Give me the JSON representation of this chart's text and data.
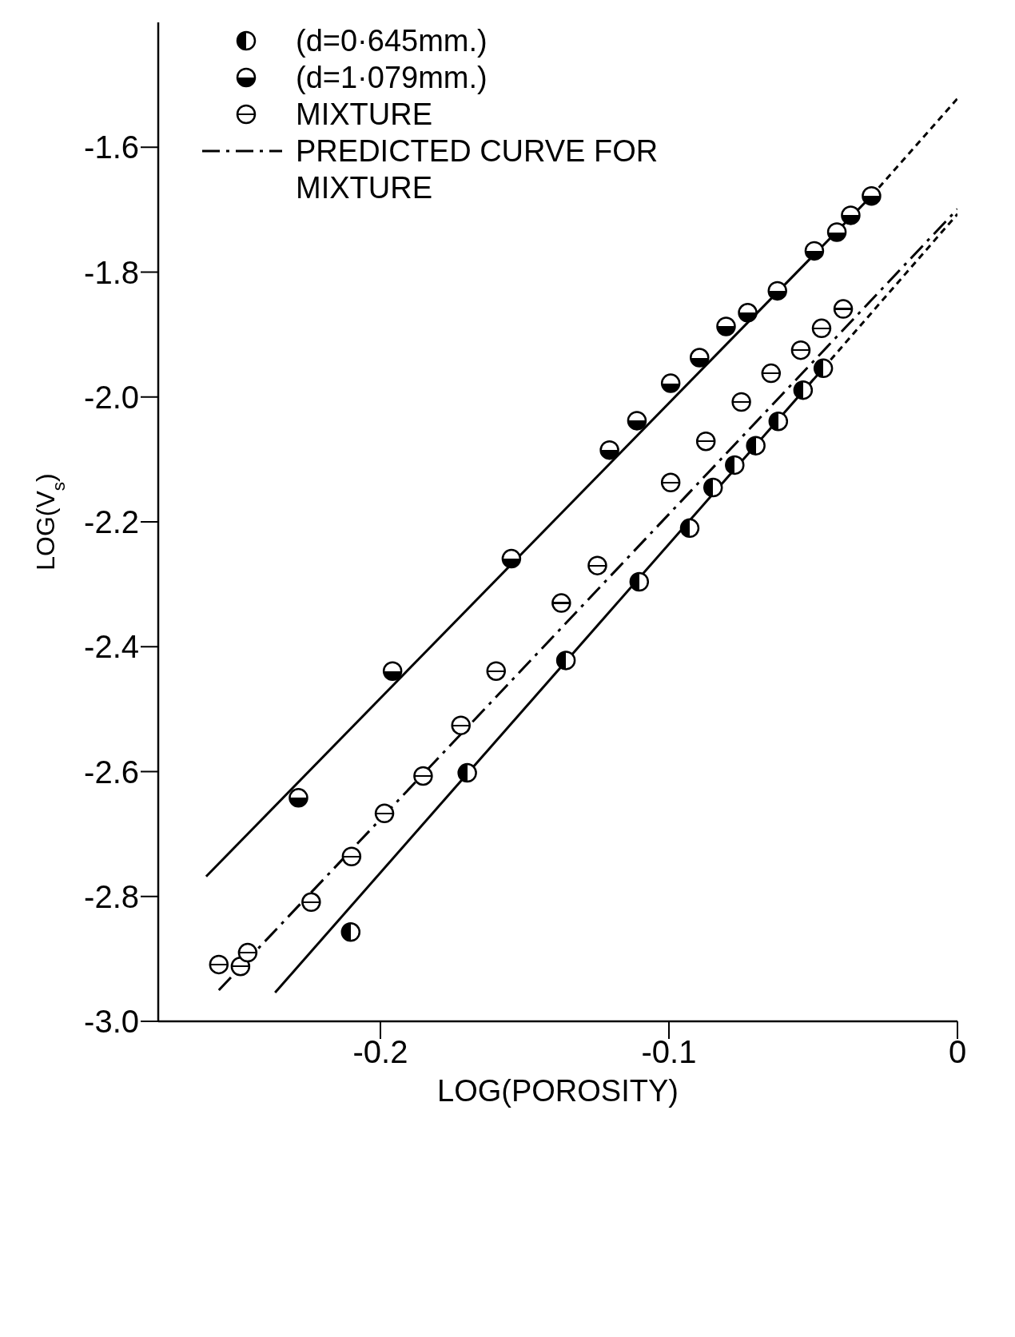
{
  "chart_data": {
    "type": "scatter",
    "xlabel": "LOG(POROSITY)",
    "ylabel": "LOG(V$_{s}$)",
    "xlim": [
      -0.277,
      0
    ],
    "ylim": [
      -3.0,
      -1.4
    ],
    "xticks": [
      {
        "value": -0.2,
        "label": "-0.2"
      },
      {
        "value": -0.1,
        "label": "-0.1"
      },
      {
        "value": 0,
        "label": "0"
      }
    ],
    "yticks": [
      {
        "value": -3.0,
        "label": "-3.0"
      },
      {
        "value": -2.8,
        "label": "-2.8"
      },
      {
        "value": -2.6,
        "label": "-2.6"
      },
      {
        "value": -2.4,
        "label": "-2.4"
      },
      {
        "value": -2.2,
        "label": "-2.2"
      },
      {
        "value": -2.0,
        "label": "-2.0"
      },
      {
        "value": -1.8,
        "label": "-1.8"
      },
      {
        "value": -1.6,
        "label": "-1.6"
      }
    ],
    "legend": "top left",
    "marker": "circle",
    "series": [
      {
        "name": "(d=0·645mm.)",
        "color": "#000000",
        "x": [
          -0.2103,
          -0.1699,
          -0.1357,
          -0.1103,
          -0.0928,
          -0.0847,
          -0.0772,
          -0.0699,
          -0.0621,
          -0.0535,
          -0.0465
        ],
        "values": [
          -2.857,
          -2.602,
          -2.422,
          -2.296,
          -2.21,
          -2.145,
          -2.109,
          -2.078,
          -2.039,
          -1.989,
          -1.954
        ]
      },
      {
        "name": "(d=1·079mm.)",
        "color": "#000000",
        "x": [
          -0.2284,
          -0.1958,
          -0.1546,
          -0.1206,
          -0.1111,
          -0.0994,
          -0.0894,
          -0.0802,
          -0.0727,
          -0.0624,
          -0.0496,
          -0.0418,
          -0.037,
          -0.0298
        ],
        "values": [
          -2.642,
          -2.439,
          -2.259,
          -2.085,
          -2.038,
          -1.978,
          -1.937,
          -1.887,
          -1.865,
          -1.83,
          -1.766,
          -1.736,
          -1.709,
          -1.678
        ]
      },
      {
        "name": "MIXTURE",
        "color": "#000000",
        "x": [
          -0.256,
          -0.2485,
          -0.246,
          -0.224,
          -0.21,
          -0.1986,
          -0.1852,
          -0.1721,
          -0.1599,
          -0.1373,
          -0.1248,
          -0.0994,
          -0.0872,
          -0.0749,
          -0.0646,
          -0.0543,
          -0.0471,
          -0.0396
        ],
        "values": [
          -2.909,
          -2.912,
          -2.89,
          -2.809,
          -2.736,
          -2.667,
          -2.607,
          -2.526,
          -2.439,
          -2.33,
          -2.27,
          -2.137,
          -2.071,
          -2.008,
          -1.962,
          -1.925,
          -1.89,
          -1.859
        ]
      },
      {
        "name": "PREDICTED CURVE FOR MIXTURE",
        "type": "line",
        "color": "#000000",
        "line_style": "dashed",
        "marker": "none",
        "x": [
          -0.256,
          0
        ],
        "values": [
          -2.95,
          -1.699
        ]
      },
      {
        "type": "line",
        "color": "#000000",
        "line_style": "solid",
        "marker": "none",
        "x": [
          -0.2365,
          -0.0465
        ],
        "values": [
          -2.954,
          -1.954
        ]
      },
      {
        "type": "line",
        "color": "#000000",
        "line_style": "dotted",
        "marker": "none",
        "x": [
          -0.0465,
          0
        ],
        "values": [
          -1.954,
          -1.707
        ]
      },
      {
        "type": "line",
        "color": "#000000",
        "line_style": "solid",
        "marker": "none",
        "x": [
          -0.2604,
          -0.0298
        ],
        "values": [
          -2.768,
          -1.678
        ]
      },
      {
        "type": "line",
        "color": "#000000",
        "line_style": "dotted",
        "marker": "none",
        "x": [
          -0.0298,
          0
        ],
        "values": [
          -1.678,
          -1.522
        ]
      }
    ]
  }
}
